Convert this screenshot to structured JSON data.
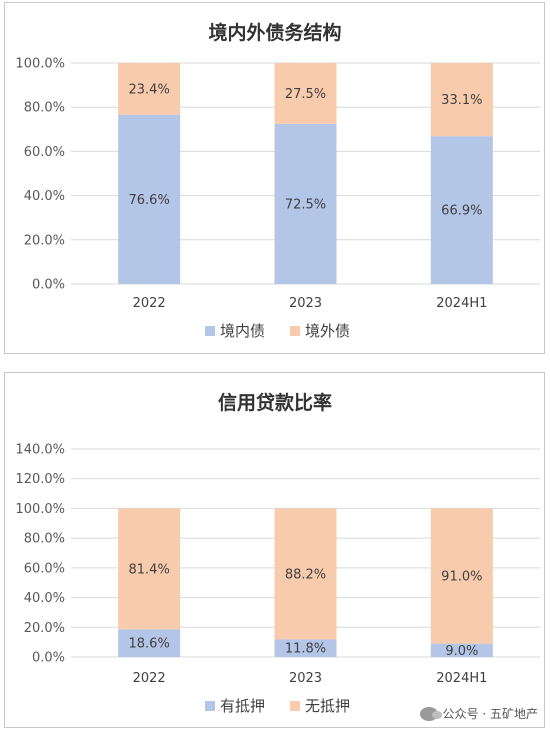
{
  "colors": {
    "domestic": "#b4c6e7",
    "overseas": "#f8cbad"
  },
  "chart_data": [
    {
      "type": "bar",
      "stacked": true,
      "title": "境内外债务结构",
      "categories": [
        "2022",
        "2023",
        "2024H1"
      ],
      "series": [
        {
          "name": "境内债",
          "values": [
            76.6,
            72.5,
            66.9
          ],
          "labels": [
            "76.6%",
            "72.5%",
            "66.9%"
          ],
          "color": "#b4c6e7"
        },
        {
          "name": "境外债",
          "values": [
            23.4,
            27.5,
            33.1
          ],
          "labels": [
            "23.4%",
            "27.5%",
            "33.1%"
          ],
          "color": "#f8cbad"
        }
      ],
      "ylim": [
        0,
        100
      ],
      "yticks": [
        "0.0%",
        "20.0%",
        "40.0%",
        "60.0%",
        "80.0%",
        "100.0%"
      ],
      "grid": true,
      "legend": "bottom"
    },
    {
      "type": "bar",
      "stacked": true,
      "title": "信用贷款比率",
      "categories": [
        "2022",
        "2023",
        "2024H1"
      ],
      "series": [
        {
          "name": "有抵押",
          "values": [
            18.6,
            11.8,
            9.0
          ],
          "labels": [
            "18.6%",
            "11.8%",
            "9.0%"
          ],
          "color": "#b4c6e7"
        },
        {
          "name": "无抵押",
          "values": [
            81.4,
            88.2,
            91.0
          ],
          "labels": [
            "81.4%",
            "88.2%",
            "91.0%"
          ],
          "color": "#f8cbad"
        }
      ],
      "ylim": [
        0,
        140
      ],
      "yticks": [
        "0.0%",
        "20.0%",
        "40.0%",
        "60.0%",
        "80.0%",
        "100.0%",
        "120.0%",
        "140.0%"
      ],
      "grid": true,
      "legend": "bottom"
    }
  ],
  "watermark": "公众号 · 五矿地产"
}
